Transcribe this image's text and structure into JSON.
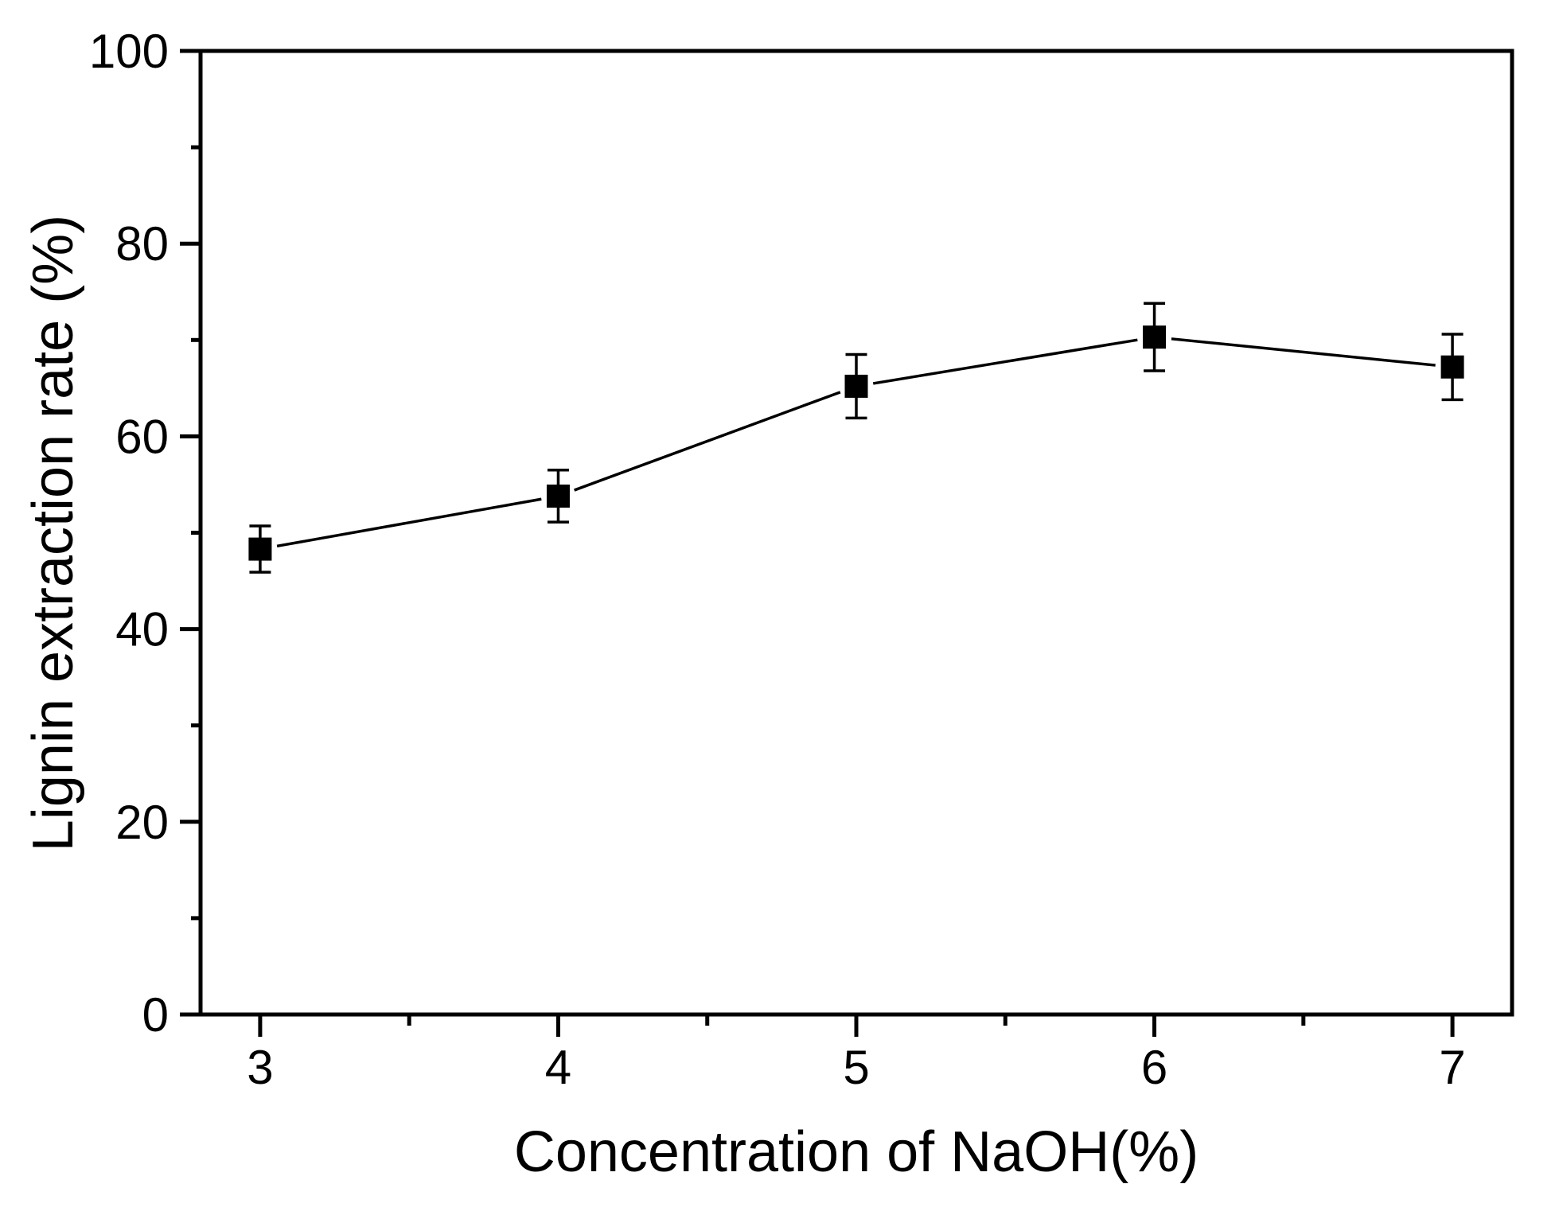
{
  "chart_data": {
    "type": "line",
    "title": "",
    "xlabel": "Concentration of NaOH(%)",
    "ylabel": "Lignin extraction rate (%)",
    "x": [
      3,
      4,
      5,
      6,
      7
    ],
    "series": [
      {
        "name": "Lignin extraction rate",
        "values": [
          48.3,
          53.8,
          65.2,
          70.3,
          67.2
        ],
        "error_bars": [
          2.4,
          2.7,
          3.3,
          3.5,
          3.4
        ],
        "marker": "filled-square",
        "color": "#000000"
      }
    ],
    "xlim": [
      2.8,
      7.2
    ],
    "ylim": [
      0,
      100
    ],
    "x_major_ticks": [
      3,
      4,
      5,
      6,
      7
    ],
    "x_minor_ticks": [
      3.5,
      4.5,
      5.5,
      6.5
    ],
    "y_major_ticks": [
      0,
      20,
      40,
      60,
      80,
      100
    ],
    "y_minor_ticks": [
      10,
      30,
      50,
      70,
      90
    ],
    "grid": false,
    "legend": "none",
    "frame": "full-box",
    "background": "#ffffff",
    "axis_color": "#000000"
  }
}
